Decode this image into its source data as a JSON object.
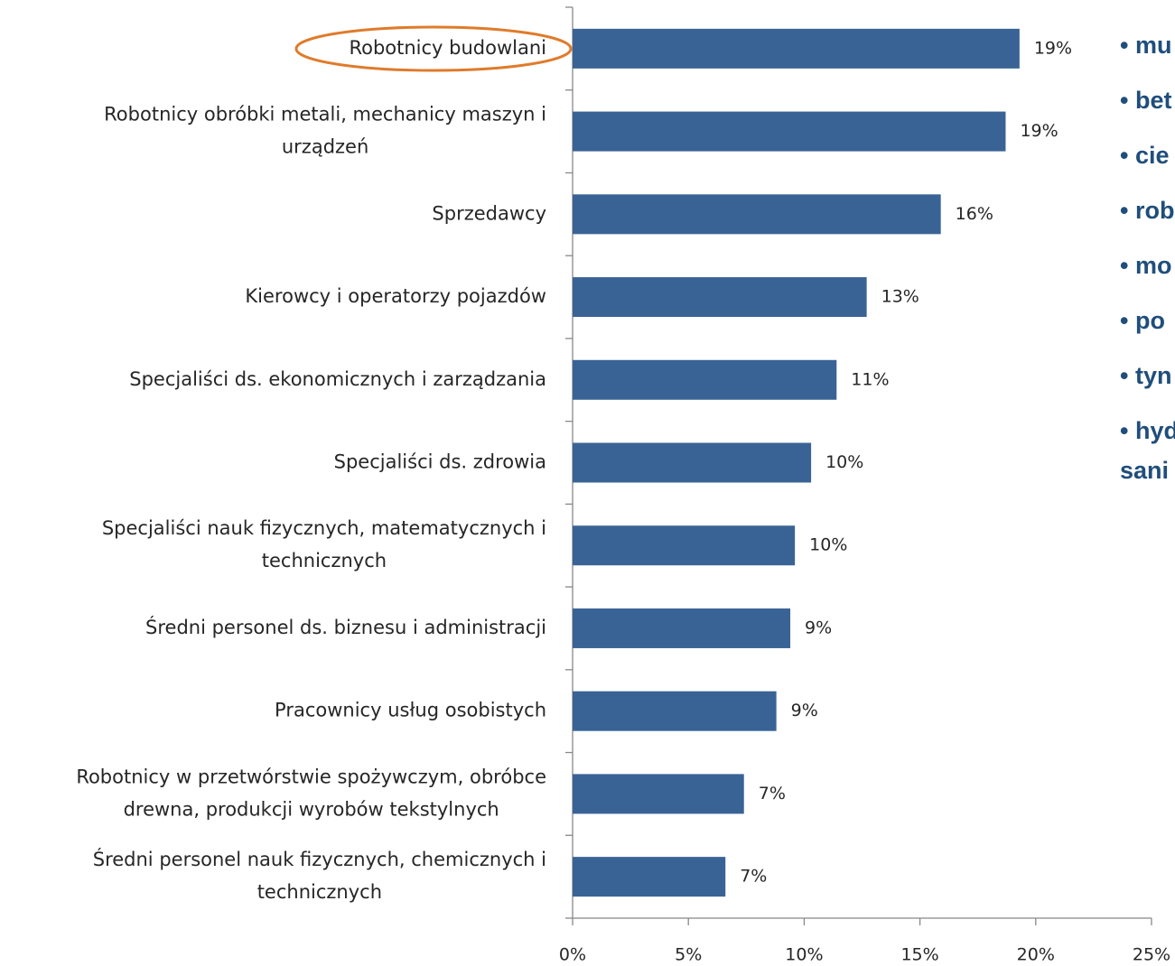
{
  "chart_data": {
    "type": "bar",
    "orientation": "horizontal",
    "categories": [
      "Robotnicy budowlani",
      "Robotnicy obróbki metali, mechanicy maszyn i\nurządzeń",
      "Sprzedawcy",
      "Kierowcy i operatorzy pojazdów",
      "Specjaliści ds. ekonomicznych i zarządzania",
      "Specjaliści ds. zdrowia",
      "Specjaliści nauk fizycznych, matematycznych i\ntechnicznych",
      "Średni personel ds. biznesu i administracji",
      "Pracownicy usług osobistych",
      "Robotnicy w przetwórstwie spożywczym, obróbce\ndrewna, produkcji wyrobów tekstylnych",
      "Średni personel  nauk fizycznych, chemicznych i\ntechnicznych"
    ],
    "values": [
      19.3,
      18.7,
      15.9,
      12.7,
      11.4,
      10.3,
      9.6,
      9.4,
      8.8,
      7.4,
      6.6
    ],
    "value_labels": [
      "19%",
      "19%",
      "16%",
      "13%",
      "11%",
      "10%",
      "10%",
      "9%",
      "9%",
      "7%",
      "7%"
    ],
    "color": "#3a6395",
    "xlim": [
      0,
      25
    ],
    "xticks": [
      {
        "value": 0,
        "label": "0%"
      },
      {
        "value": 5,
        "label": "5%"
      },
      {
        "value": 10,
        "label": "10%"
      },
      {
        "value": 15,
        "label": "15%"
      },
      {
        "value": 20,
        "label": "20%"
      },
      {
        "value": 25,
        "label": "25%"
      }
    ],
    "annotations": [
      "• mu",
      "• bet",
      "• cie",
      "• rob",
      "• mo",
      "• po",
      "• tyn",
      "• hyd",
      "sani"
    ]
  }
}
